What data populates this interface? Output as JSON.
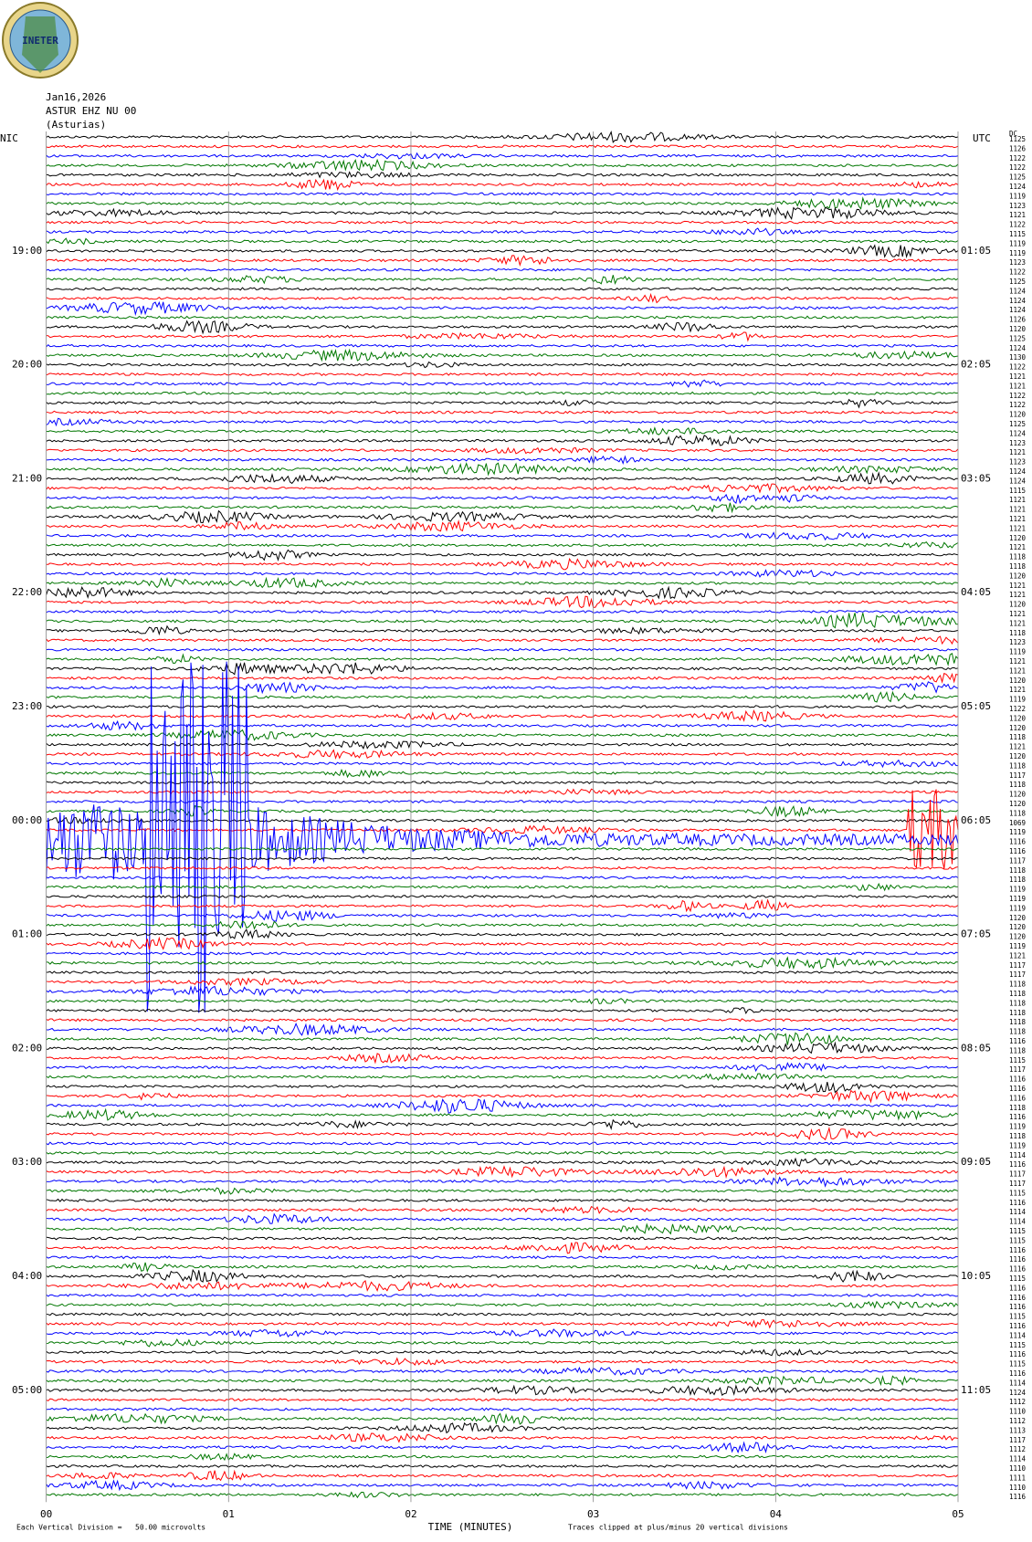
{
  "header": {
    "logo": "INETER",
    "date": "Jan16,2026",
    "station": "ASTUR EHZ NU 00",
    "location": "(Asturias)"
  },
  "left_label": "NIC",
  "right_label": "UTC",
  "dc_label": "DC",
  "left_times": [
    "19:00",
    "20:00",
    "21:00",
    "22:00",
    "23:00",
    "00:00",
    "01:00",
    "02:00",
    "03:00",
    "04:00",
    "05:00"
  ],
  "right_times": [
    "01:05",
    "02:05",
    "03:05",
    "04:05",
    "05:05",
    "06:05",
    "07:05",
    "08:05",
    "09:05",
    "10:05",
    "11:05"
  ],
  "x_ticks": [
    "00",
    "01",
    "02",
    "03",
    "04",
    "05"
  ],
  "x_axis_title": "TIME (MINUTES)",
  "footer": {
    "division": "Each Vertical Division =   50.00 microvolts",
    "clip_note": "Traces clipped at plus/minus 20 vertical divisions"
  },
  "trace_colors": [
    "#000000",
    "#ff0000",
    "#0000ff",
    "#007700"
  ],
  "trace_levels": [
    1125,
    1126,
    1122,
    1122,
    1125,
    1124,
    1119,
    1123,
    1121,
    1122,
    1115,
    1119,
    1119,
    1123,
    1122,
    1125,
    1124,
    1124,
    1124,
    1126,
    1120,
    1125,
    1124,
    1130,
    1122,
    1121,
    1121,
    1122,
    1122,
    1120,
    1125,
    1124,
    1123,
    1121,
    1123,
    1124,
    1124,
    1115,
    1121,
    1121,
    1121,
    1121,
    1120,
    1121,
    1118,
    1118,
    1120,
    1121,
    1121,
    1120,
    1121,
    1121,
    1118,
    1123,
    1119,
    1121,
    1121,
    1120,
    1121,
    1119,
    1122,
    1120,
    1120,
    1118,
    1121,
    1120,
    1118,
    1117,
    1118,
    1120,
    1120,
    1118,
    1069,
    1119,
    1116,
    1116,
    1117,
    1118,
    1118,
    1119,
    1119,
    1119,
    1120,
    1120,
    1120,
    1119,
    1121,
    1117,
    1117,
    1118,
    1118,
    1118,
    1118,
    1118,
    1118,
    1116,
    1118,
    1115,
    1117,
    1116,
    1116,
    1116,
    1118,
    1116,
    1119,
    1118,
    1119,
    1114,
    1116,
    1117,
    1117,
    1115,
    1116,
    1114,
    1114,
    1115,
    1115,
    1116,
    1116,
    1116,
    1115,
    1116,
    1116,
    1116,
    1115,
    1116,
    1114,
    1115,
    1116,
    1115,
    1116,
    1114,
    1124,
    1112,
    1110,
    1112,
    1113,
    1117,
    1112,
    1114,
    1110,
    1111,
    1110,
    1116
  ]
}
